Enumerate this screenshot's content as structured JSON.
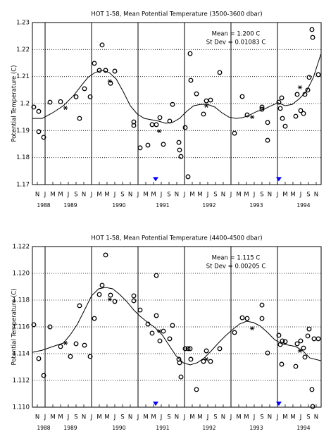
{
  "chart_data": [
    {
      "type": "scatter",
      "title": "HOT 1-58, Mean Potential Temperature (3500-3600 dbar)",
      "y_label": "Potential Temperature (C)",
      "annotations": [
        "Mean = 1.200 C",
        "St Dev = 0.01083 C"
      ],
      "xlim": [
        1988.727,
        1994.94
      ],
      "ylim": [
        1.17,
        1.23
      ],
      "yticks": [
        1.17,
        1.18,
        1.19,
        1.2,
        1.21,
        1.22,
        1.23
      ],
      "yticks_labels_unused": null,
      "grid": true,
      "year_lines": [
        1989,
        1990,
        1991,
        1992,
        1993,
        1994
      ],
      "xticks": [
        {
          "value": 1988.8333,
          "label": "N"
        },
        {
          "value": 1989.0,
          "label": "J"
        },
        {
          "value": 1989.1667,
          "label": "M"
        },
        {
          "value": 1989.3333,
          "label": "M"
        },
        {
          "value": 1989.5,
          "label": "J"
        },
        {
          "value": 1989.6667,
          "label": "S"
        },
        {
          "value": 1989.8333,
          "label": "N"
        },
        {
          "value": 1990.0,
          "label": "J"
        },
        {
          "value": 1990.1667,
          "label": "M"
        },
        {
          "value": 1990.3333,
          "label": "M"
        },
        {
          "value": 1990.5,
          "label": "J"
        },
        {
          "value": 1990.6667,
          "label": "S"
        },
        {
          "value": 1990.8333,
          "label": "N"
        },
        {
          "value": 1991.0,
          "label": "J"
        },
        {
          "value": 1991.1667,
          "label": "M"
        },
        {
          "value": 1991.3333,
          "label": "M"
        },
        {
          "value": 1991.5,
          "label": "J"
        },
        {
          "value": 1991.6667,
          "label": "S"
        },
        {
          "value": 1991.8333,
          "label": "N"
        },
        {
          "value": 1992.0,
          "label": "J"
        },
        {
          "value": 1992.1667,
          "label": "M"
        },
        {
          "value": 1992.3333,
          "label": "M"
        },
        {
          "value": 1992.5,
          "label": "J"
        },
        {
          "value": 1992.6667,
          "label": "S"
        },
        {
          "value": 1992.8333,
          "label": "N"
        },
        {
          "value": 1993.0,
          "label": "J"
        },
        {
          "value": 1993.1667,
          "label": "M"
        },
        {
          "value": 1993.3333,
          "label": "M"
        },
        {
          "value": 1993.5,
          "label": "J"
        },
        {
          "value": 1993.6667,
          "label": "S"
        },
        {
          "value": 1993.8333,
          "label": "N"
        },
        {
          "value": 1994.0,
          "label": "J"
        },
        {
          "value": 1994.1667,
          "label": "M"
        },
        {
          "value": 1994.3333,
          "label": "M"
        },
        {
          "value": 1994.5,
          "label": "J"
        },
        {
          "value": 1994.6667,
          "label": "S"
        },
        {
          "value": 1994.8333,
          "label": "N"
        }
      ],
      "year_labels": [
        {
          "value": 1988.97,
          "label": "1988"
        },
        {
          "value": 1989.545,
          "label": "1989"
        },
        {
          "value": 1990.59,
          "label": "1990"
        },
        {
          "value": 1991.53,
          "label": "1991"
        },
        {
          "value": 1992.53,
          "label": "1992"
        },
        {
          "value": 1993.545,
          "label": "1993"
        },
        {
          "value": 1994.56,
          "label": "1994"
        }
      ],
      "points": {
        "color": "#000000",
        "x": [
          1988.757,
          1988.863,
          1988.863,
          1988.97,
          1989.106,
          1989.333,
          1989.667,
          1989.742,
          1989.848,
          1989.97,
          1990.06,
          1990.167,
          1990.227,
          1990.303,
          1990.409,
          1990.5,
          1990.909,
          1990.909,
          1991.045,
          1991.212,
          1991.303,
          1991.394,
          1991.47,
          1991.545,
          1991.682,
          1991.742,
          1991.879,
          1991.894,
          1991.924,
          1992.015,
          1992.076,
          1992.121,
          1992.136,
          1992.258,
          1992.409,
          1992.47,
          1992.561,
          1992.758,
          1993.076,
          1993.242,
          1993.348,
          1993.667,
          1993.667,
          1993.788,
          1993.788,
          1994.03,
          1994.061,
          1994.091,
          1994.106,
          1994.167,
          1994.394,
          1994.424,
          1994.5,
          1994.561,
          1994.591,
          1994.652,
          1994.682,
          1994.742,
          1994.758,
          1994.879
        ],
        "values": [
          1.1987,
          1.1971,
          1.1896,
          1.1875,
          1.2005,
          1.2007,
          1.2025,
          1.1945,
          1.2055,
          1.2025,
          1.2149,
          1.2123,
          1.2217,
          1.2123,
          1.2075,
          1.212,
          1.1932,
          1.1919,
          1.1836,
          1.1846,
          1.1922,
          1.1922,
          1.1948,
          1.1849,
          1.1935,
          1.1997,
          1.1856,
          1.1828,
          1.1804,
          1.1911,
          1.1729,
          1.2185,
          1.2086,
          1.2036,
          1.1961,
          1.201,
          1.2013,
          1.2115,
          1.189,
          1.2026,
          1.1958,
          1.1987,
          1.1979,
          1.193,
          1.1864,
          1.2005,
          1.1982,
          1.2021,
          1.1945,
          1.1916,
          1.1953,
          1.2034,
          1.1974,
          1.1963,
          1.2034,
          1.205,
          1.2097,
          1.2274,
          1.2245,
          1.2107
        ]
      },
      "asterisks": {
        "color": "#000000",
        "x": [
          1989.439,
          1990.394,
          1991.455,
          1992.47,
          1993.455,
          1994.485
        ],
        "values": [
          1.1984,
          1.2083,
          1.1898,
          1.1992,
          1.195,
          1.206
        ]
      },
      "curve": {
        "color": "#000000",
        "x": [
          1988.727,
          1988.939,
          1989.167,
          1989.394,
          1989.621,
          1989.773,
          1989.924,
          1990.076,
          1990.227,
          1990.379,
          1990.53,
          1990.682,
          1990.833,
          1990.985,
          1991.136,
          1991.288,
          1991.439,
          1991.591,
          1991.742,
          1991.894,
          1992.045,
          1992.197,
          1992.348,
          1992.5,
          1992.652,
          1992.803,
          1992.955,
          1993.106,
          1993.258,
          1993.409,
          1993.561,
          1993.712,
          1993.864,
          1994.015,
          1994.167,
          1994.318,
          1994.47,
          1994.621,
          1994.773,
          1994.939
        ],
        "values": [
          1.1945,
          1.1945,
          1.1966,
          1.1992,
          1.2031,
          1.2065,
          1.2097,
          1.2115,
          1.2123,
          1.2115,
          1.2091,
          1.2044,
          1.1992,
          1.1961,
          1.1945,
          1.194,
          1.1935,
          1.1927,
          1.193,
          1.1945,
          1.1971,
          1.1992,
          1.1997,
          1.1997,
          1.1987,
          1.1966,
          1.195,
          1.1945,
          1.1948,
          1.1958,
          1.1971,
          1.1979,
          1.1992,
          1.2003,
          1.1992,
          1.1997,
          1.2018,
          1.2044,
          1.2097,
          1.2185
        ]
      },
      "markers": {
        "color": "#0000ff",
        "x": [
          1991.379,
          1994.03
        ],
        "values": [
          1.1712,
          1.1712
        ]
      }
    },
    {
      "type": "scatter",
      "title": "HOT 1-58, Mean Potential Temperature (4400-4500 dbar)",
      "y_label": "Potential Temperature (C)",
      "annotations": [
        "Mean = 1.115 C",
        "St Dev = 0.00205 C"
      ],
      "xlim": [
        1988.727,
        1994.94
      ],
      "ylim": [
        1.11,
        1.122
      ],
      "yticks": [
        {
          "value": 1.11,
          "label": "1.110"
        },
        {
          "value": 1.112,
          "label": "1.112"
        },
        {
          "value": 1.114,
          "label": "1.114"
        },
        {
          "value": 1.116,
          "label": "1.116"
        },
        {
          "value": 1.118,
          "label": "1.118"
        },
        {
          "value": 1.12,
          "label": "1.120"
        },
        {
          "value": 1.122,
          "label": "1.122"
        }
      ],
      "grid": true,
      "year_lines": [
        1989,
        1990,
        1991,
        1992,
        1993,
        1994
      ],
      "xticks": [
        {
          "value": 1988.8333,
          "label": "N"
        },
        {
          "value": 1989.0,
          "label": "J"
        },
        {
          "value": 1989.1667,
          "label": "M"
        },
        {
          "value": 1989.3333,
          "label": "M"
        },
        {
          "value": 1989.5,
          "label": "J"
        },
        {
          "value": 1989.6667,
          "label": "S"
        },
        {
          "value": 1989.8333,
          "label": "N"
        },
        {
          "value": 1990.0,
          "label": "J"
        },
        {
          "value": 1990.1667,
          "label": "M"
        },
        {
          "value": 1990.3333,
          "label": "M"
        },
        {
          "value": 1990.5,
          "label": "J"
        },
        {
          "value": 1990.6667,
          "label": "S"
        },
        {
          "value": 1990.8333,
          "label": "N"
        },
        {
          "value": 1991.0,
          "label": "J"
        },
        {
          "value": 1991.1667,
          "label": "M"
        },
        {
          "value": 1991.3333,
          "label": "M"
        },
        {
          "value": 1991.5,
          "label": "J"
        },
        {
          "value": 1991.6667,
          "label": "S"
        },
        {
          "value": 1991.8333,
          "label": "N"
        },
        {
          "value": 1992.0,
          "label": "J"
        },
        {
          "value": 1992.1667,
          "label": "M"
        },
        {
          "value": 1992.3333,
          "label": "M"
        },
        {
          "value": 1992.5,
          "label": "J"
        },
        {
          "value": 1992.6667,
          "label": "S"
        },
        {
          "value": 1992.8333,
          "label": "N"
        },
        {
          "value": 1993.0,
          "label": "J"
        },
        {
          "value": 1993.1667,
          "label": "M"
        },
        {
          "value": 1993.3333,
          "label": "M"
        },
        {
          "value": 1993.5,
          "label": "J"
        },
        {
          "value": 1993.6667,
          "label": "S"
        },
        {
          "value": 1993.8333,
          "label": "N"
        },
        {
          "value": 1994.0,
          "label": "J"
        },
        {
          "value": 1994.1667,
          "label": "M"
        },
        {
          "value": 1994.3333,
          "label": "M"
        },
        {
          "value": 1994.5,
          "label": "J"
        },
        {
          "value": 1994.6667,
          "label": "S"
        },
        {
          "value": 1994.8333,
          "label": "N"
        }
      ],
      "year_labels": [
        {
          "value": 1988.97,
          "label": "1988"
        },
        {
          "value": 1989.545,
          "label": "1989"
        },
        {
          "value": 1990.59,
          "label": "1990"
        },
        {
          "value": 1991.53,
          "label": "1991"
        },
        {
          "value": 1992.53,
          "label": "1992"
        },
        {
          "value": 1993.545,
          "label": "1993"
        },
        {
          "value": 1994.56,
          "label": "1994"
        }
      ],
      "points": {
        "color": "#000000",
        "x": [
          1988.757,
          1988.863,
          1988.97,
          1989.106,
          1989.333,
          1989.545,
          1989.667,
          1989.742,
          1989.848,
          1989.97,
          1990.06,
          1990.167,
          1990.227,
          1990.303,
          1990.409,
          1990.5,
          1990.909,
          1990.909,
          1991.045,
          1991.212,
          1991.303,
          1991.394,
          1991.394,
          1991.47,
          1991.545,
          1991.682,
          1991.742,
          1991.879,
          1991.894,
          1991.924,
          1992.015,
          1992.076,
          1992.121,
          1992.136,
          1992.258,
          1992.409,
          1992.47,
          1992.561,
          1992.758,
          1993.076,
          1993.242,
          1993.348,
          1993.667,
          1993.667,
          1993.788,
          1994.03,
          1994.061,
          1994.091,
          1994.106,
          1994.167,
          1994.394,
          1994.424,
          1994.5,
          1994.561,
          1994.591,
          1994.652,
          1994.682,
          1994.742,
          1994.758,
          1994.788,
          1994.879
        ],
        "values": [
          1.11616,
          1.11363,
          1.11237,
          1.116,
          1.11453,
          1.11379,
          1.11474,
          1.11758,
          1.11463,
          1.11379,
          1.11663,
          1.11842,
          1.11911,
          1.12137,
          1.11837,
          1.1179,
          1.11832,
          1.11795,
          1.11726,
          1.11621,
          1.11553,
          1.11984,
          1.11684,
          1.11495,
          1.11568,
          1.11511,
          1.11611,
          1.11358,
          1.11332,
          1.11226,
          1.11437,
          1.11437,
          1.11437,
          1.11358,
          1.11132,
          1.11342,
          1.11421,
          1.11342,
          1.11437,
          1.11558,
          1.11668,
          1.11663,
          1.11763,
          1.11663,
          1.11405,
          1.11537,
          1.11468,
          1.11321,
          1.11495,
          1.1149,
          1.11305,
          1.11474,
          1.11495,
          1.11442,
          1.11374,
          1.11532,
          1.11584,
          1.11132,
          1.11005,
          1.11511,
          1.11511
        ]
      },
      "asterisks": {
        "color": "#000000",
        "x": [
          1989.439,
          1990.394,
          1991.455,
          1992.47,
          1993.455,
          1994.485
        ],
        "values": [
          1.11479,
          1.11805,
          1.11568,
          1.11358,
          1.11589,
          1.11421
        ]
      },
      "curve": {
        "color": "#000000",
        "x": [
          1988.727,
          1988.939,
          1989.167,
          1989.394,
          1989.545,
          1989.697,
          1989.848,
          1990.0,
          1990.152,
          1990.303,
          1990.455,
          1990.606,
          1990.758,
          1990.909,
          1991.061,
          1991.212,
          1991.364,
          1991.515,
          1991.667,
          1991.818,
          1991.97,
          1992.121,
          1992.273,
          1992.424,
          1992.576,
          1992.727,
          1992.879,
          1993.03,
          1993.182,
          1993.333,
          1993.485,
          1993.636,
          1993.788,
          1993.939,
          1994.091,
          1994.242,
          1994.394,
          1994.545,
          1994.697,
          1994.939
        ],
        "values": [
          1.1141,
          1.11426,
          1.11453,
          1.11479,
          1.11542,
          1.11621,
          1.11726,
          1.11832,
          1.11884,
          1.11895,
          1.11884,
          1.11842,
          1.11789,
          1.11726,
          1.11674,
          1.11632,
          1.11595,
          1.11542,
          1.11463,
          1.11384,
          1.11332,
          1.11316,
          1.11332,
          1.11368,
          1.11421,
          1.11479,
          1.11532,
          1.11579,
          1.11621,
          1.11642,
          1.11632,
          1.11605,
          1.11558,
          1.11505,
          1.11474,
          1.11463,
          1.11453,
          1.11421,
          1.11368,
          1.11347
        ]
      },
      "markers": {
        "color": "#0000ff",
        "x": [
          1991.379,
          1994.03
        ],
        "values": [
          1.1101,
          1.1101
        ]
      }
    }
  ]
}
